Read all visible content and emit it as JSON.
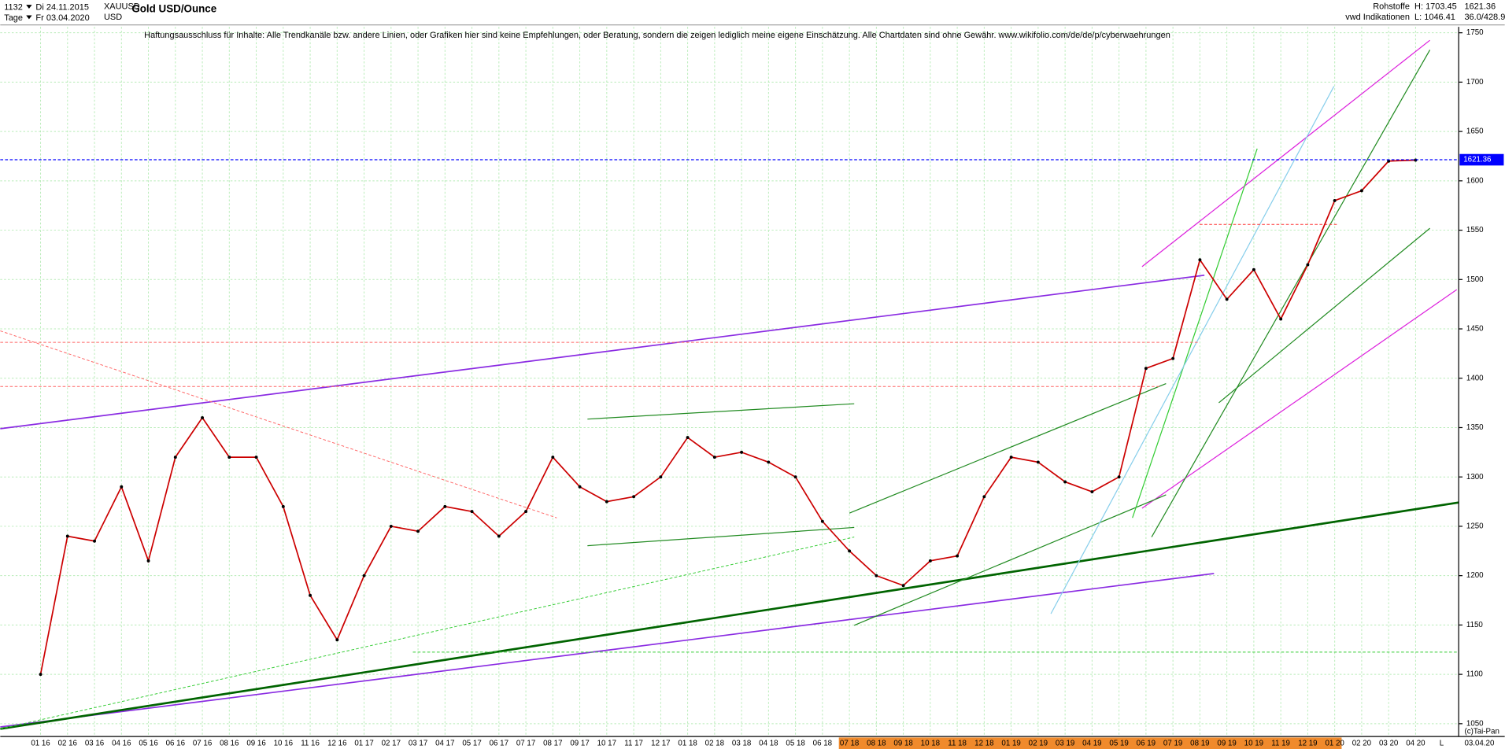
{
  "chart_data": {
    "type": "line",
    "title": "Gold USD/Ounce",
    "annotations": [
      "1132",
      "Di 24.11.2015",
      "Tage",
      "Fr 03.04.2020",
      "XAUUSD",
      "USD",
      "Rohstoffe",
      "vwd Indikationen",
      "H: 1703.45",
      "L: 1046.41",
      "36.0/428.9",
      "Haftungsausschluss für Inhalte: Alle Trendkanäle bzw. andere Linien, oder Grafiken hier sind keine Empfehlungen, oder Beratung, sondern die zeigen lediglich meine eigene Einschätzung. Alle Chartdaten sind ohne Gewähr.  www.wikifolio.com/de/de/p/cyberwaehrungen",
      "(c)Tai-Pan",
      "03.04.20",
      "L"
    ],
    "categories": [
      "01 16",
      "02 16",
      "03 16",
      "04 16",
      "05 16",
      "06 16",
      "07 16",
      "08 16",
      "09 16",
      "10 16",
      "11 16",
      "12 16",
      "01 17",
      "02 17",
      "03 17",
      "04 17",
      "05 17",
      "06 17",
      "07 17",
      "08 17",
      "09 17",
      "10 17",
      "11 17",
      "12 17",
      "01 18",
      "02 18",
      "03 18",
      "04 18",
      "05 18",
      "06 18",
      "07 18",
      "08 18",
      "09 18",
      "10 18",
      "11 18",
      "12 18",
      "01 19",
      "02 19",
      "03 19",
      "04 19",
      "05 19",
      "06 19",
      "07 19",
      "08 19",
      "09 19",
      "10 19",
      "11 19",
      "12 19",
      "01 20",
      "02 20",
      "03 20",
      "04 20"
    ],
    "series": [
      {
        "name": "XAUUSD",
        "color": "#cc0000",
        "values": [
          1100,
          1240,
          1235,
          1290,
          1215,
          1320,
          1360,
          1320,
          1320,
          1270,
          1180,
          1135,
          1200,
          1250,
          1245,
          1270,
          1265,
          1240,
          1265,
          1320,
          1290,
          1275,
          1280,
          1300,
          1340,
          1320,
          1325,
          1315,
          1300,
          1255,
          1225,
          1200,
          1190,
          1215,
          1220,
          1280,
          1320,
          1315,
          1295,
          1285,
          1300,
          1410,
          1420,
          1520,
          1480,
          1510,
          1460,
          1515,
          1580,
          1590,
          1620,
          1621
        ]
      }
    ],
    "last_price": 1621.36,
    "last_price_color": "#0000ff",
    "ylim": [
      1037,
      1756
    ],
    "yticks": [
      1050,
      1100,
      1150,
      1200,
      1250,
      1300,
      1350,
      1400,
      1450,
      1500,
      1550,
      1600,
      1650,
      1700,
      1750
    ],
    "grid": true
  }
}
